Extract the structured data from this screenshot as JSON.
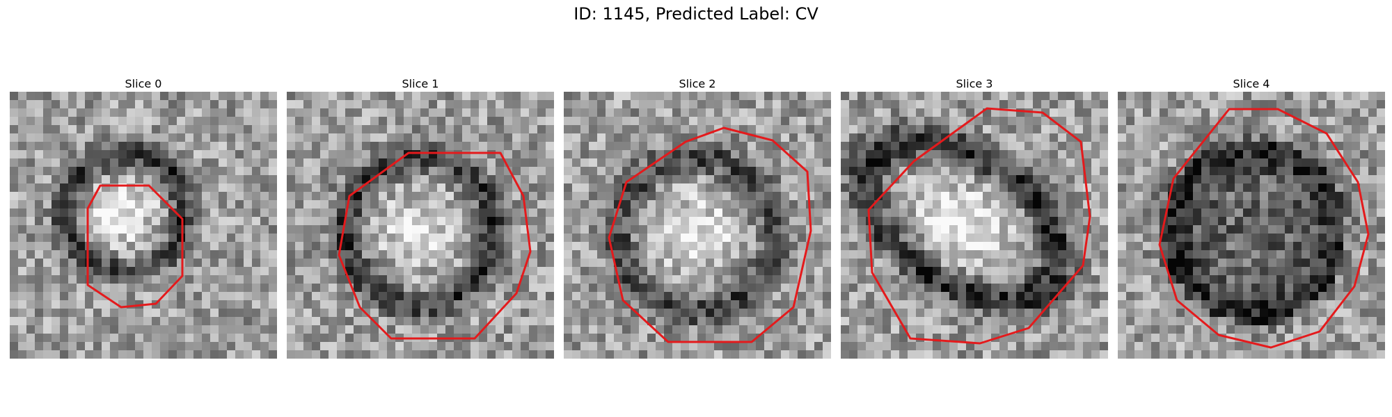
{
  "figure": {
    "title": "ID: 1145, Predicted Label: CV"
  },
  "contour_color": "#e41a1c",
  "slices": [
    {
      "title": "Slice 0"
    },
    {
      "title": "Slice 1"
    },
    {
      "title": "Slice 2"
    },
    {
      "title": "Slice 3"
    },
    {
      "title": "Slice 4"
    }
  ]
}
